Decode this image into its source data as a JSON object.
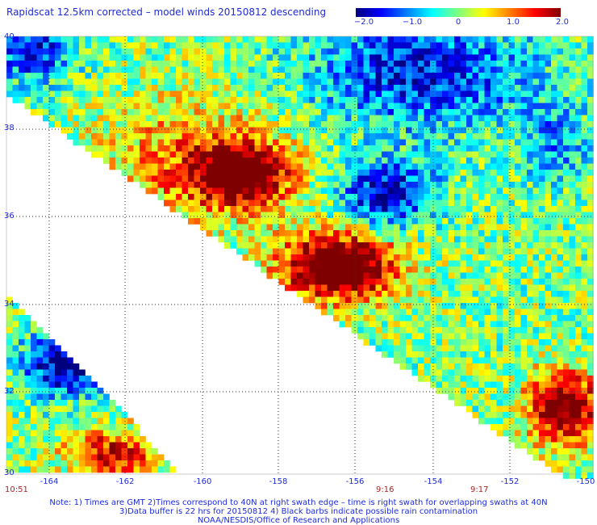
{
  "title": "Rapidscat 12.5km corrected – model winds 20150812 descending",
  "colorbar": {
    "ticks": [
      {
        "label": "−2.0",
        "value": -2.0
      },
      {
        "label": "−1.0",
        "value": -1.0
      },
      {
        "label": "0",
        "value": 0
      },
      {
        "label": "1.0",
        "value": 1.0
      },
      {
        "label": "2.0",
        "value": 2.0
      }
    ],
    "colors": [
      "#00007f",
      "#0000ff",
      "#007fff",
      "#00ffff",
      "#7fff7f",
      "#ffff00",
      "#ff7f00",
      "#ff0000",
      "#7f0000"
    ]
  },
  "latitude_labels": [
    "40",
    "38",
    "36",
    "34",
    "32",
    "30"
  ],
  "longitude_labels": [
    "-164",
    "-162",
    "-160",
    "-158",
    "-156",
    "-154",
    "-152",
    "-150"
  ],
  "times": {
    "left": "10:51",
    "mid": "9:16",
    "right": "9:17"
  },
  "notes": {
    "line1": "Note: 1) Times are GMT 2)Times correspond to 40N at right swath edge – time is right swath for overlapping swaths at 40N",
    "line2": "3)Data buffer is 22 hrs for 20150812 4) Black barbs indicate possible rain contamination",
    "line3": "NOAA/NESDIS/Office of Research and Applications"
  }
}
